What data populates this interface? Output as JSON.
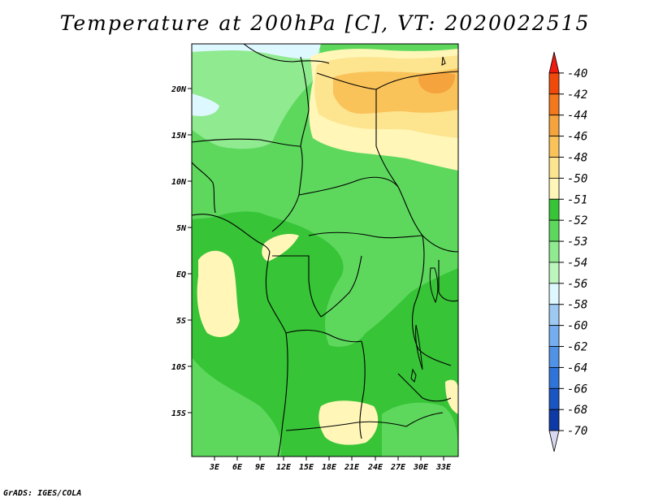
{
  "title": "Temperature at 200hPa [C], VT: 2020022515",
  "credit": "GrADS: IGES/COLA",
  "map": {
    "lat_labels": [
      "20N",
      "15N",
      "10N",
      "5N",
      "EQ",
      "5S",
      "10S",
      "15S"
    ],
    "lon_labels": [
      "3E",
      "6E",
      "9E",
      "12E",
      "15E",
      "18E",
      "21E",
      "24E",
      "27E",
      "30E",
      "33E"
    ]
  },
  "colorbar": {
    "labels": [
      "-40",
      "-42",
      "-44",
      "-46",
      "-48",
      "-50",
      "-51",
      "-52",
      "-53",
      "-54",
      "-56",
      "-58",
      "-60",
      "-62",
      "-64",
      "-66",
      "-68",
      "-70"
    ],
    "colors": [
      "#ee1a0f",
      "#f04a0a",
      "#f3781c",
      "#f5a33c",
      "#fac35a",
      "#fde48f",
      "#fff6b8",
      "#37c437",
      "#5dd85d",
      "#90ea90",
      "#bdf6bd",
      "#def8ff",
      "#9ec9f2",
      "#74aef0",
      "#5092e6",
      "#2f74d8",
      "#1a55c4",
      "#0d3aa6",
      "#0a1f80"
    ]
  }
}
